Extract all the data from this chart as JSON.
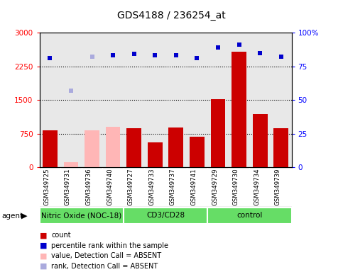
{
  "title": "GDS4188 / 236254_at",
  "samples": [
    "GSM349725",
    "GSM349731",
    "GSM349736",
    "GSM349740",
    "GSM349727",
    "GSM349733",
    "GSM349737",
    "GSM349741",
    "GSM349729",
    "GSM349730",
    "GSM349734",
    "GSM349739"
  ],
  "bar_values": [
    820,
    120,
    820,
    900,
    870,
    560,
    890,
    680,
    1520,
    2580,
    1180,
    870
  ],
  "bar_absent": [
    false,
    true,
    true,
    true,
    false,
    false,
    false,
    false,
    false,
    false,
    false,
    false
  ],
  "scatter_values_pct": [
    81,
    57,
    82,
    83,
    84,
    83,
    83,
    81,
    89,
    91,
    85,
    82
  ],
  "scatter_absent": [
    false,
    true,
    true,
    false,
    false,
    false,
    false,
    false,
    false,
    false,
    false,
    false
  ],
  "groups": [
    {
      "label": "Nitric Oxide (NOC-18)",
      "start": 0,
      "end": 4
    },
    {
      "label": "CD3/CD28",
      "start": 4,
      "end": 8
    },
    {
      "label": "control",
      "start": 8,
      "end": 12
    }
  ],
  "bar_color_present": "#cc0000",
  "bar_color_absent": "#ffb6b6",
  "scatter_color_present": "#0000cc",
  "scatter_color_absent": "#aaaadd",
  "ylim_left": [
    0,
    3000
  ],
  "ylim_right": [
    0,
    100
  ],
  "yticks_left": [
    0,
    750,
    1500,
    2250,
    3000
  ],
  "yticks_right": [
    0,
    25,
    50,
    75,
    100
  ],
  "ytick_labels_right": [
    "0",
    "25",
    "50",
    "75",
    "100%"
  ],
  "plot_bg_color": "#e8e8e8",
  "label_bg_color": "#c8c8c8",
  "group_color": "#66dd66"
}
